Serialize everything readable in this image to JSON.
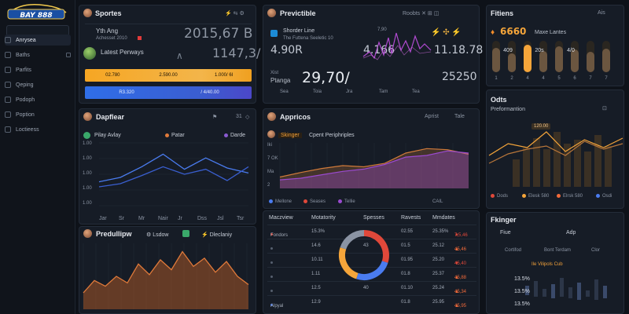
{
  "brand": {
    "name": "BAY 888"
  },
  "sidebar": {
    "items": [
      {
        "label": "Anrysea",
        "active": true
      },
      {
        "label": "Baths"
      },
      {
        "label": "Parfits"
      },
      {
        "label": "Qeping"
      },
      {
        "label": "Podoph"
      },
      {
        "label": "Poption"
      },
      {
        "label": "Loctieess"
      }
    ]
  },
  "sports": {
    "title": "Sportes",
    "header_icons": "⚡ ⇆ ⚙",
    "match1_title": "Yth Ang",
    "match1_sub": "Achesset 2010",
    "match1_score": "2015,67 B",
    "match2_title": "Latest Perways",
    "match2_score": "1147,3/",
    "bar1": [
      "02.780",
      "2.590.00",
      "1.000/ 6I"
    ],
    "bar2": [
      "R3.320",
      "/ 4/40.00"
    ]
  },
  "predictive": {
    "title": "Previctible",
    "header_icons": "Roobts  ✕  ⊞  ◫",
    "row1_title": "Shorder Line",
    "row1_sub": "The Futtena Seeletic 10",
    "row1_a": "4.90R",
    "row1_b": "4.166",
    "row1_c": "11.18.78",
    "row2_small": "Xist",
    "row2_label": "Ptanga",
    "row2_a": "29,70/",
    "row2_b": "25250",
    "axis": [
      "Sea",
      "Toia",
      "Jra",
      "Tam",
      "Tea"
    ],
    "chart_value": "7,90"
  },
  "fitness": {
    "title": "Fitiens",
    "header_right": "Ais",
    "value": "6660",
    "value_label": "Maxe Lantes",
    "bar_labels": [
      "409",
      "20s",
      "4/0"
    ],
    "axis": [
      "1",
      "2",
      "4",
      "4",
      "5",
      "6",
      "7",
      "7"
    ],
    "chart_data": {
      "type": "bar",
      "categories": [
        "1",
        "2",
        "4",
        "4",
        "5",
        "6",
        "7",
        "7"
      ],
      "values": [
        62,
        48,
        70,
        54,
        66,
        58,
        52,
        60
      ],
      "highlight_index": 2
    }
  },
  "dapflear": {
    "title": "Dapflear",
    "header_right": "31",
    "legend": [
      "Pilay Avlay",
      "Patar",
      "Darde"
    ],
    "yaxis": [
      "1.00",
      "1.00",
      "1.00",
      "1.00",
      "1.00"
    ],
    "xaxis": [
      "Jar",
      "Sr",
      "Mr",
      "Nair",
      "Jr",
      "Dss",
      "Jsl",
      "Tsr"
    ],
    "chart_data": {
      "type": "line",
      "x": [
        "Jar",
        "Sr",
        "Mr",
        "Nair",
        "Jr",
        "Dss",
        "Jsl",
        "Tsr"
      ],
      "series": [
        {
          "name": "Pilay Avlay",
          "values": [
            38,
            45,
            62,
            82,
            58,
            76,
            60,
            52
          ]
        },
        {
          "name": "Patar",
          "values": [
            30,
            35,
            48,
            62,
            50,
            58,
            40,
            62
          ]
        }
      ],
      "ylim": [
        0,
        100
      ]
    }
  },
  "apprices": {
    "title": "Appricos",
    "header_right": "Aprist",
    "header_chip": "Tale",
    "subtitle_tag": "Skinger",
    "subtitle": "Cpent Periphriples",
    "yaxis": [
      "Iki",
      "7 OK",
      "Ma",
      "2"
    ],
    "legend": [
      "Mellone",
      "Seases",
      "Tellie"
    ],
    "legend_right": "CAIL",
    "chart_data": {
      "type": "area",
      "x": [
        1,
        2,
        3,
        4,
        5,
        6,
        7,
        8,
        9,
        10
      ],
      "series": [
        {
          "name": "Mellone",
          "values": [
            20,
            28,
            35,
            40,
            38,
            44,
            62,
            70,
            68,
            60
          ]
        },
        {
          "name": "Seases",
          "values": [
            15,
            18,
            24,
            30,
            34,
            42,
            55,
            58,
            66,
            62
          ]
        }
      ]
    }
  },
  "table": {
    "headers": [
      "Maczview",
      "Motatority",
      "Spesses",
      "Ravests",
      "Mmdates"
    ],
    "rows": [
      {
        "name": "Fondors",
        "c1": "15.3%",
        "c2": "",
        "c3": "02.55",
        "c4": "25.35%",
        "c5": "7,5,46",
        "up": false
      },
      {
        "name": "",
        "c1": "14.6",
        "c2": "43",
        "c3": "01.5",
        "c4": "25.12",
        "c5": "45,46",
        "up": true
      },
      {
        "name": "",
        "c1": "10.11",
        "c2": "",
        "c3": "01.95",
        "c4": "25.20",
        "c5": "45,40",
        "up": false
      },
      {
        "name": "",
        "c1": "1.11",
        "c2": "",
        "c3": "01.8",
        "c4": "25.37",
        "c5": "45,88",
        "up": true
      },
      {
        "name": "",
        "c1": "12.5",
        "c2": "40",
        "c3": "01.10",
        "c4": "25.24",
        "c5": "45,34",
        "up": true
      },
      {
        "name": "Alpyal",
        "c1": "12.9",
        "c2": "",
        "c3": "01.8",
        "c4": "25.95",
        "c5": "45,95",
        "up": true
      }
    ],
    "donut": {
      "type": "pie",
      "values": [
        30,
        25,
        25,
        20
      ]
    }
  },
  "predillipw": {
    "title": "Predullipw",
    "chips": [
      "Lsdow",
      "Dleclaniy"
    ],
    "chart_data": {
      "type": "area",
      "x": [
        1,
        2,
        3,
        4,
        5,
        6,
        7,
        8,
        9,
        10,
        11,
        12,
        13,
        14,
        15,
        16
      ],
      "values": [
        20,
        35,
        28,
        40,
        32,
        55,
        42,
        60,
        48,
        70,
        52,
        62,
        45,
        58,
        40,
        30
      ]
    }
  },
  "odts": {
    "title": "Odts",
    "subtitle": "Preformantion",
    "chip": "120.00",
    "legend": [
      "Dods",
      "Elesk 580",
      "Elrsk 580",
      "Osdi"
    ],
    "chart_data": {
      "type": "line",
      "series": [
        {
          "name": "Dods",
          "values": [
            40,
            55,
            50,
            70,
            45,
            60,
            50,
            62
          ]
        },
        {
          "name": "Elesk 580",
          "values": [
            30,
            42,
            48,
            52,
            40,
            58,
            48,
            55
          ]
        }
      ],
      "bars": [
        35,
        50,
        62,
        48,
        70,
        55,
        60,
        45,
        66,
        52
      ]
    }
  },
  "fkinger": {
    "title": "Fkinger",
    "tab1": "Fiue",
    "tab2": "Adp",
    "subtabs": [
      "Cortifod",
      "Bont Terdam",
      "Clor"
    ],
    "tag": "Ile Vilipols Cub",
    "rows": [
      "13.5%",
      "13.5%",
      "13.5%"
    ]
  }
}
